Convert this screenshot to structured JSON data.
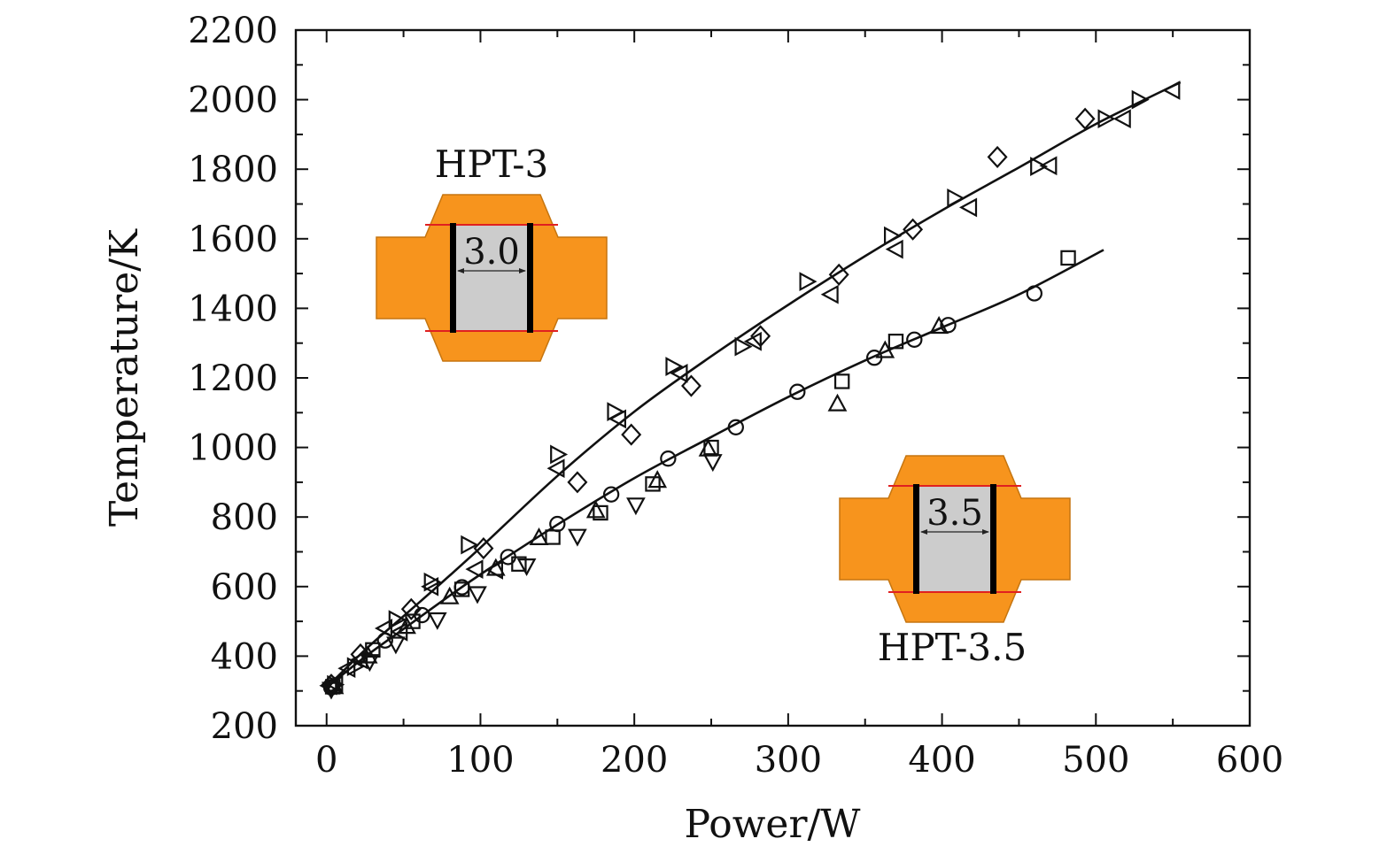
{
  "chart_data": {
    "type": "scatter",
    "xlabel": "Power/W",
    "ylabel": "Temperature/K",
    "xlim": [
      -20,
      600
    ],
    "ylim": [
      200,
      2200
    ],
    "xticks": [
      0,
      100,
      200,
      300,
      400,
      500,
      600
    ],
    "yticks": [
      200,
      400,
      600,
      800,
      1000,
      1200,
      1400,
      1600,
      1800,
      2000,
      2200
    ],
    "grid": false,
    "colors": {
      "axis": "#111111",
      "marker": "#111111",
      "inset_fill": "#f7941d",
      "inset_core": "#cccccc",
      "inset_line": "#e02020",
      "inset_wall": "#000000"
    },
    "insets": [
      {
        "title": "HPT-3",
        "dimension": "3.0",
        "position": "upper-left"
      },
      {
        "title": "HPT-3.5",
        "dimension": "3.5",
        "position": "lower-right"
      }
    ],
    "fits": [
      {
        "label": "HPT-3",
        "x": [
          0,
          25,
          50,
          75,
          100,
          150,
          200,
          250,
          300,
          350,
          400,
          450,
          500,
          555
        ],
        "y": [
          310,
          418,
          515,
          612,
          712,
          918,
          1103,
          1262,
          1410,
          1550,
          1682,
          1805,
          1930,
          2050
        ]
      },
      {
        "label": "HPT-3.5",
        "x": [
          0,
          25,
          50,
          75,
          100,
          150,
          200,
          250,
          300,
          350,
          400,
          450,
          505
        ],
        "y": [
          310,
          398,
          478,
          558,
          635,
          778,
          912,
          1030,
          1145,
          1250,
          1345,
          1440,
          1568
        ]
      }
    ],
    "series": [
      {
        "label": "HPT-3",
        "marker": "diamond",
        "x": [
          3,
          22,
          55,
          102,
          163,
          198,
          237,
          282,
          333,
          381,
          436,
          493
        ],
        "y": [
          318,
          405,
          535,
          710,
          900,
          1037,
          1177,
          1320,
          1497,
          1627,
          1835,
          1945
        ]
      },
      {
        "label": "HPT-3",
        "marker": "triangle-right",
        "x": [
          5,
          18,
          45,
          68,
          92,
          150,
          187,
          225,
          270,
          312,
          367,
          408,
          462,
          506,
          528
        ],
        "y": [
          318,
          370,
          505,
          613,
          720,
          980,
          1103,
          1233,
          1290,
          1477,
          1608,
          1717,
          1808,
          1945,
          2000
        ]
      },
      {
        "label": "HPT-3",
        "marker": "triangle-left",
        "x": [
          2,
          14,
          38,
          68,
          97,
          150,
          190,
          230,
          278,
          328,
          370,
          418,
          470,
          518,
          550
        ],
        "y": [
          315,
          365,
          480,
          600,
          650,
          940,
          1082,
          1213,
          1305,
          1440,
          1570,
          1690,
          1810,
          1945,
          2027
        ]
      },
      {
        "label": "HPT-3.5",
        "marker": "circle",
        "x": [
          3,
          38,
          62,
          88,
          118,
          150,
          185,
          222,
          266,
          306,
          356,
          382,
          404,
          460
        ],
        "y": [
          310,
          445,
          518,
          598,
          685,
          780,
          865,
          968,
          1058,
          1160,
          1258,
          1310,
          1352,
          1443
        ]
      },
      {
        "label": "HPT-3.5",
        "marker": "square",
        "x": [
          4,
          30,
          56,
          88,
          125,
          147,
          178,
          212,
          250,
          335,
          370,
          482
        ],
        "y": [
          312,
          418,
          500,
          592,
          665,
          742,
          812,
          895,
          1000,
          1190,
          1305,
          1545
        ]
      },
      {
        "label": "HPT-3.5",
        "marker": "triangle-up",
        "x": [
          5,
          27,
          52,
          80,
          110,
          138,
          175,
          215,
          248,
          332,
          363,
          398
        ],
        "y": [
          312,
          400,
          485,
          570,
          652,
          740,
          818,
          905,
          995,
          1125,
          1278,
          1348
        ]
      },
      {
        "label": "HPT-3.5",
        "marker": "triangle-down",
        "x": [
          3,
          28,
          45,
          72,
          98,
          130,
          163,
          201,
          251
        ],
        "y": [
          305,
          385,
          435,
          505,
          580,
          660,
          745,
          835,
          960
        ]
      },
      {
        "label": "HPT-3.5",
        "marker": "triangle-left",
        "x": [
          6,
          22,
          48,
          110
        ],
        "y": [
          318,
          390,
          470,
          648
        ]
      }
    ]
  }
}
